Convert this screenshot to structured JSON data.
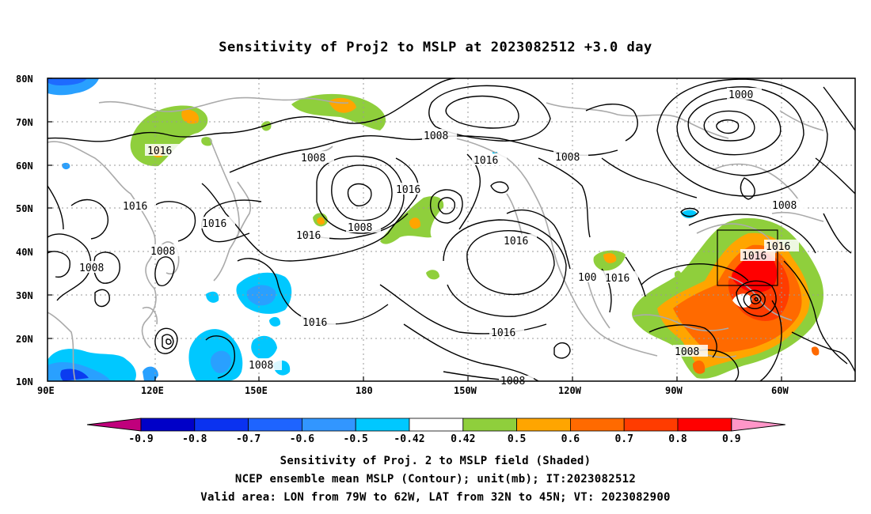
{
  "title": "Sensitivity of Proj2 to MSLP at 2023082512 +3.0 day",
  "map": {
    "lat_labels": [
      "80N",
      "70N",
      "60N",
      "50N",
      "40N",
      "30N",
      "20N",
      "10N"
    ],
    "lon_labels": [
      "90E",
      "120E",
      "150E",
      "180",
      "150W",
      "120W",
      "90W",
      "60W"
    ],
    "contour_labels": [
      {
        "id": "c1",
        "text": "1016"
      },
      {
        "id": "c2",
        "text": "1016"
      },
      {
        "id": "c3",
        "text": "1016"
      },
      {
        "id": "c4",
        "text": "1008"
      },
      {
        "id": "c5",
        "text": "1008"
      },
      {
        "id": "c6",
        "text": "1008"
      },
      {
        "id": "c7",
        "text": "1016"
      },
      {
        "id": "c8",
        "text": "1008"
      },
      {
        "id": "c9",
        "text": "1016"
      },
      {
        "id": "c10",
        "text": "1008"
      },
      {
        "id": "c11",
        "text": "1008"
      },
      {
        "id": "c12",
        "text": "1016"
      },
      {
        "id": "c13",
        "text": "1016"
      },
      {
        "id": "c14",
        "text": "1008"
      },
      {
        "id": "c15",
        "text": "1016"
      },
      {
        "id": "c16",
        "text": "1016"
      },
      {
        "id": "c17",
        "text": "1000"
      },
      {
        "id": "c18",
        "text": "1008"
      },
      {
        "id": "c19",
        "text": "1016"
      },
      {
        "id": "c20",
        "text": "1016"
      },
      {
        "id": "c21",
        "text": "1008"
      },
      {
        "id": "c22",
        "text": "1016"
      },
      {
        "id": "c23",
        "text": "1008"
      },
      {
        "id": "c24",
        "text": "1008"
      },
      {
        "id": "c25",
        "text": "100"
      },
      {
        "id": "c26",
        "text": "1016"
      }
    ],
    "colors": {
      "green": "#8fcf3c",
      "orange": "#ffa500",
      "dorange": "#ff6a00",
      "red": "#ff1a00",
      "brightred": "#ff0000",
      "cyan": "#00c8ff",
      "lblue": "#29a0ff",
      "blue": "#1e6bff",
      "dblue": "#0b3cf0",
      "coast": "#aaaaaa"
    }
  },
  "colorbar": {
    "labels": [
      "-0.9",
      "-0.8",
      "-0.7",
      "-0.6",
      "-0.5",
      "-0.42",
      "0.42",
      "0.5",
      "0.6",
      "0.7",
      "0.8",
      "0.9"
    ],
    "colors": [
      "#c0007c",
      "#0000c8",
      "#0a32f0",
      "#1e64ff",
      "#3296ff",
      "#00c8ff",
      "#ffffff",
      "#8fcf3c",
      "#ffa500",
      "#ff6a00",
      "#ff3c00",
      "#ff0000",
      "#ff96c8"
    ]
  },
  "captions": {
    "line1": "Sensitivity of Proj. 2 to MSLP field (Shaded)",
    "line2": "NCEP ensemble mean MSLP (Contour); unit(mb); IT:2023082512",
    "line3": "Valid area: LON from 79W to 62W, LAT from 32N to 45N; VT: 2023082900"
  }
}
